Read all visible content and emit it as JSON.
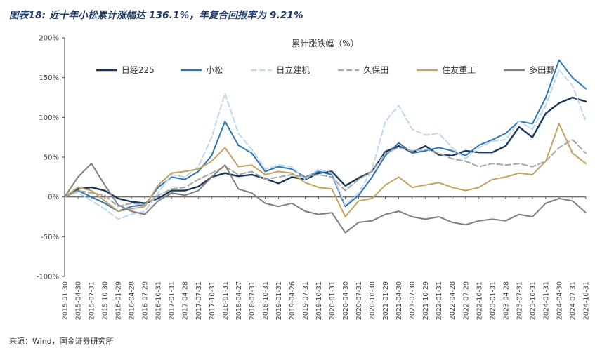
{
  "header": {
    "title": "图表18: 近十年小松累计涨幅达 136.1%，年复合回报率为 9.21%"
  },
  "footer": {
    "source": "来源：Wind，国金证券研究所"
  },
  "chart_data": {
    "type": "line",
    "title": "累计涨跌幅（%）",
    "legend_position": "top",
    "grid": false,
    "ylim": [
      -100,
      200
    ],
    "yticks": [
      200,
      150,
      100,
      50,
      0,
      -50,
      -100
    ],
    "ytick_suffix": "%",
    "x": [
      "2015-01-30",
      "2015-04-30",
      "2015-07-31",
      "2015-10-30",
      "2016-01-29",
      "2016-04-28",
      "2016-07-29",
      "2016-10-31",
      "2017-01-31",
      "2017-04-28",
      "2017-07-31",
      "2017-10-31",
      "2018-01-31",
      "2018-04-27",
      "2018-07-31",
      "2018-10-31",
      "2019-01-31",
      "2019-04-26",
      "2019-07-31",
      "2019-10-31",
      "2020-01-31",
      "2020-04-30",
      "2020-07-31",
      "2020-10-30",
      "2021-01-29",
      "2021-04-30",
      "2021-07-30",
      "2021-10-29",
      "2022-01-31",
      "2022-04-28",
      "2022-07-29",
      "2022-10-31",
      "2023-01-31",
      "2023-04-28",
      "2023-07-31",
      "2023-10-31",
      "2024-01-31",
      "2024-04-30",
      "2024-07-31",
      "2024-10-31"
    ],
    "series": [
      {
        "name": "日经225",
        "color": "#17375E",
        "style": "solid",
        "values": [
          0,
          10,
          12,
          8,
          -2,
          -6,
          -8,
          -2,
          8,
          8,
          13,
          25,
          30,
          26,
          28,
          23,
          17,
          25,
          22,
          30,
          32,
          14,
          24,
          32,
          57,
          64,
          56,
          64,
          53,
          52,
          58,
          56,
          56,
          64,
          88,
          75,
          105,
          118,
          125,
          120
        ]
      },
      {
        "name": "小松",
        "color": "#2E75B6",
        "style": "solid",
        "values": [
          0,
          8,
          0,
          -8,
          -18,
          -12,
          -10,
          12,
          25,
          22,
          32,
          52,
          95,
          65,
          55,
          32,
          38,
          35,
          25,
          32,
          28,
          -12,
          2,
          25,
          52,
          68,
          55,
          58,
          62,
          58,
          52,
          65,
          72,
          80,
          95,
          92,
          125,
          172,
          150,
          136
        ]
      },
      {
        "name": "日立建机",
        "color": "#BDD7EE",
        "style": "dashed",
        "values": [
          0,
          6,
          -5,
          -15,
          -28,
          -22,
          -18,
          5,
          28,
          25,
          38,
          75,
          130,
          80,
          60,
          35,
          40,
          38,
          22,
          35,
          30,
          -10,
          5,
          35,
          95,
          115,
          85,
          78,
          80,
          62,
          48,
          62,
          70,
          72,
          95,
          85,
          115,
          160,
          140,
          95
        ]
      },
      {
        "name": "久保田",
        "color": "#A6A6A6",
        "style": "dashed",
        "values": [
          0,
          8,
          5,
          2,
          -12,
          -8,
          -10,
          2,
          10,
          12,
          22,
          30,
          38,
          28,
          32,
          22,
          25,
          28,
          25,
          28,
          25,
          8,
          22,
          32,
          55,
          62,
          58,
          60,
          55,
          48,
          45,
          38,
          42,
          40,
          42,
          38,
          45,
          62,
          72,
          55
        ]
      },
      {
        "name": "住友重工",
        "color": "#C3A35D",
        "style": "solid",
        "values": [
          0,
          12,
          8,
          -5,
          -18,
          -15,
          -12,
          15,
          30,
          32,
          35,
          45,
          62,
          38,
          40,
          28,
          32,
          30,
          18,
          12,
          10,
          -25,
          -5,
          -2,
          15,
          25,
          12,
          15,
          18,
          12,
          8,
          12,
          22,
          25,
          30,
          28,
          45,
          92,
          55,
          42
        ]
      },
      {
        "name": "多田野",
        "color": "#7F7F7F",
        "style": "solid",
        "values": [
          0,
          25,
          42,
          15,
          -10,
          -18,
          -22,
          -5,
          5,
          2,
          8,
          25,
          40,
          10,
          5,
          -8,
          -12,
          -8,
          -18,
          -22,
          -20,
          -45,
          -32,
          -30,
          -22,
          -18,
          -25,
          -28,
          -25,
          -32,
          -35,
          -30,
          -28,
          -30,
          -22,
          -25,
          -8,
          -2,
          -5,
          -20
        ]
      }
    ]
  }
}
